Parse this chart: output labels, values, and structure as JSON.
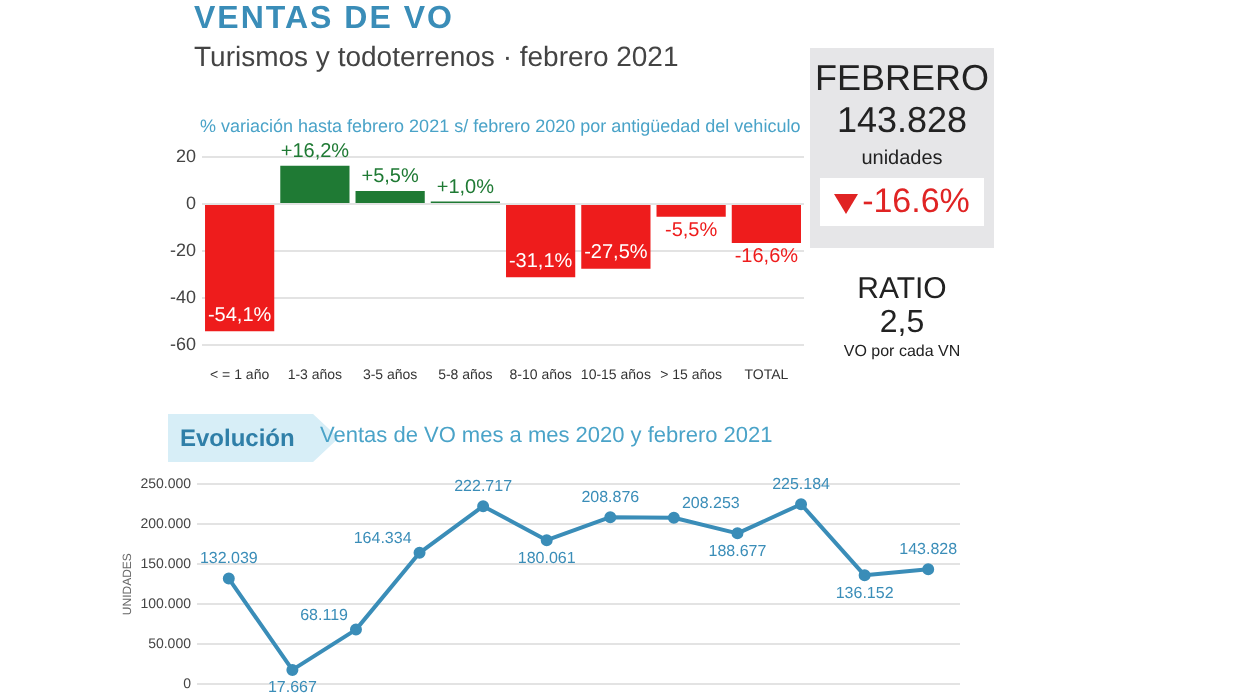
{
  "chart_data": [
    {
      "type": "bar",
      "title": "VENTAS DE VO",
      "subtitle": "Turismos y todoterrenos · febrero 2021",
      "annotations": [
        "% variación hasta febrero 2021 s/ febrero 2020  por antigüedad del vehiculo"
      ],
      "categories": [
        "< = 1 año",
        "1-3 años",
        "3-5 años",
        "5-8 años",
        "8-10 años",
        "10-15 años",
        "> 15 años",
        "TOTAL"
      ],
      "values": [
        -54.1,
        16.2,
        5.5,
        1.0,
        -31.1,
        -27.5,
        -5.5,
        -16.6
      ],
      "colors": [
        "#ee1c1c",
        "#1f7a34",
        "#1f7a34",
        "#1f7a34",
        "#ee1c1c",
        "#ee1c1c",
        "#ee1c1c",
        "#ee1c1c"
      ],
      "value_labels": [
        "-54,1%",
        "+16,2%",
        "+5,5%",
        "+1,0%",
        "-31,1%",
        "-27,5%",
        "-5,5%",
        "-16,6%"
      ],
      "ylim": [
        -60,
        20
      ],
      "yticks": [
        -60,
        -40,
        -20,
        0,
        20
      ],
      "grid": "y",
      "legend": false
    },
    {
      "type": "other",
      "title": "FEBRERO",
      "annotations": [
        "143.828",
        "unidades",
        "-16.6%",
        "RATIO",
        "2,5",
        "VO por cada VN"
      ]
    },
    {
      "type": "line",
      "title": "Evolución",
      "subtitle": "Ventas de VO mes a mes 2020 y febrero 2021",
      "ylabel": "UNIDADES",
      "categories": [
        null,
        null,
        null,
        null,
        null,
        null,
        null,
        null,
        null,
        null,
        null,
        null
      ],
      "series": [
        {
          "color": "#3a8db8",
          "values": [
            132039,
            17667,
            68119,
            164334,
            222717,
            180061,
            208876,
            208253,
            188677,
            225184,
            136152,
            143828
          ],
          "value_labels": [
            "132.039",
            "17.667",
            "68.119",
            "164.334",
            "222.717",
            "180.061",
            "208.876",
            "208.253",
            "188.677",
            "225.184",
            "136.152",
            "143.828"
          ]
        }
      ],
      "ylim": [
        0,
        250000
      ],
      "yticks": [
        {
          "value": 0,
          "label": "0"
        },
        {
          "value": 50000,
          "label": "50.000"
        },
        {
          "value": 100000,
          "label": "100.000"
        },
        {
          "value": 150000,
          "label": "150.000"
        },
        {
          "value": 200000,
          "label": "200.000"
        },
        {
          "value": 250000,
          "label": "250.000"
        }
      ],
      "grid": "y",
      "legend": false,
      "marker": "circle",
      "line_style": "solid"
    }
  ]
}
